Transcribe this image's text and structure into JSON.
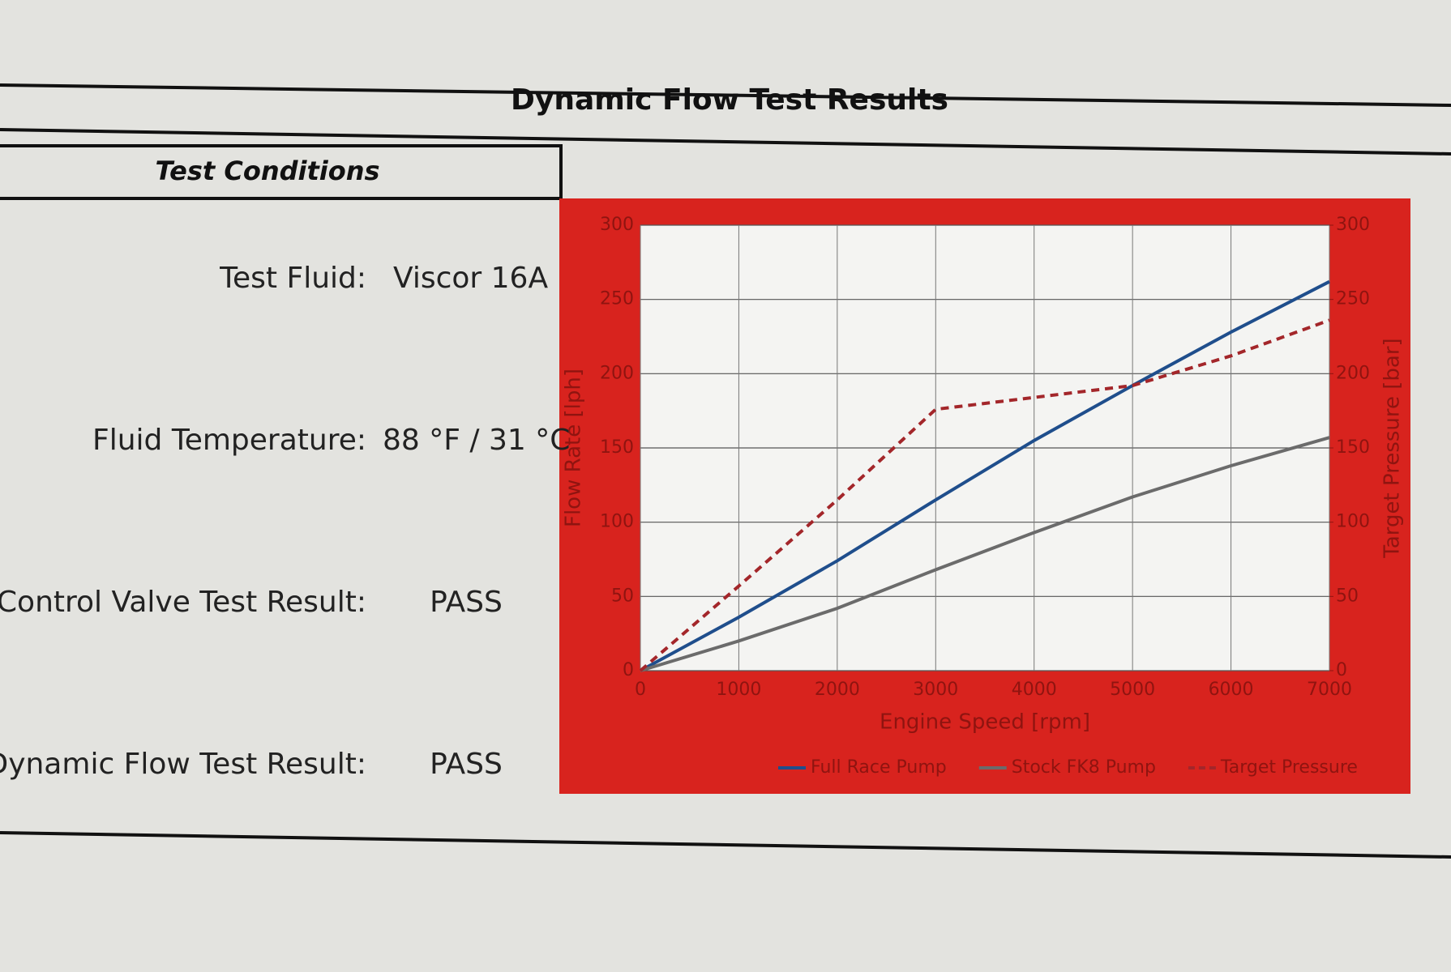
{
  "header": {
    "title": "Dynamic Flow Test Results"
  },
  "conditions": {
    "title": "Test Conditions",
    "fields": [
      {
        "label": "Test Fluid:",
        "value": "Viscor 16A"
      },
      {
        "label": "Fluid Temperature:",
        "value": "88 °F / 31 °C"
      },
      {
        "label": "Control Valve Test Result:",
        "value": "PASS"
      },
      {
        "label": "Dynamic Flow Test Result:",
        "value": "PASS"
      }
    ]
  },
  "chart_data": {
    "type": "line",
    "x_label": "Engine Speed [rpm]",
    "y_label": "Flow Rate [lph]",
    "y2_label": "Target Pressure [bar]",
    "x": [
      0,
      1000,
      2000,
      3000,
      4000,
      5000,
      6000,
      7000
    ],
    "xlim": [
      0,
      7000
    ],
    "xticks": [
      0,
      1000,
      2000,
      3000,
      4000,
      5000,
      6000,
      7000
    ],
    "ylim": [
      0,
      300
    ],
    "yticks": [
      0,
      50,
      100,
      150,
      200,
      250,
      300
    ],
    "y2lim": [
      0,
      300
    ],
    "y2ticks": [
      0,
      50,
      100,
      150,
      200,
      250,
      300
    ],
    "grid": true,
    "legend": "bottom",
    "series": [
      {
        "name": "Full Race Pump",
        "color": "#1f4e8c",
        "style": "solid",
        "values": [
          0,
          36,
          74,
          115,
          155,
          192,
          228,
          262
        ]
      },
      {
        "name": "Stock FK8 Pump",
        "color": "#6b6b6b",
        "style": "solid",
        "values": [
          0,
          20,
          42,
          68,
          93,
          117,
          138,
          157
        ]
      },
      {
        "name": "Target Pressure",
        "color": "#a3262a",
        "style": "dashed",
        "axis": "y2",
        "values": [
          0,
          57,
          115,
          176,
          184,
          192,
          212,
          236
        ]
      }
    ]
  }
}
